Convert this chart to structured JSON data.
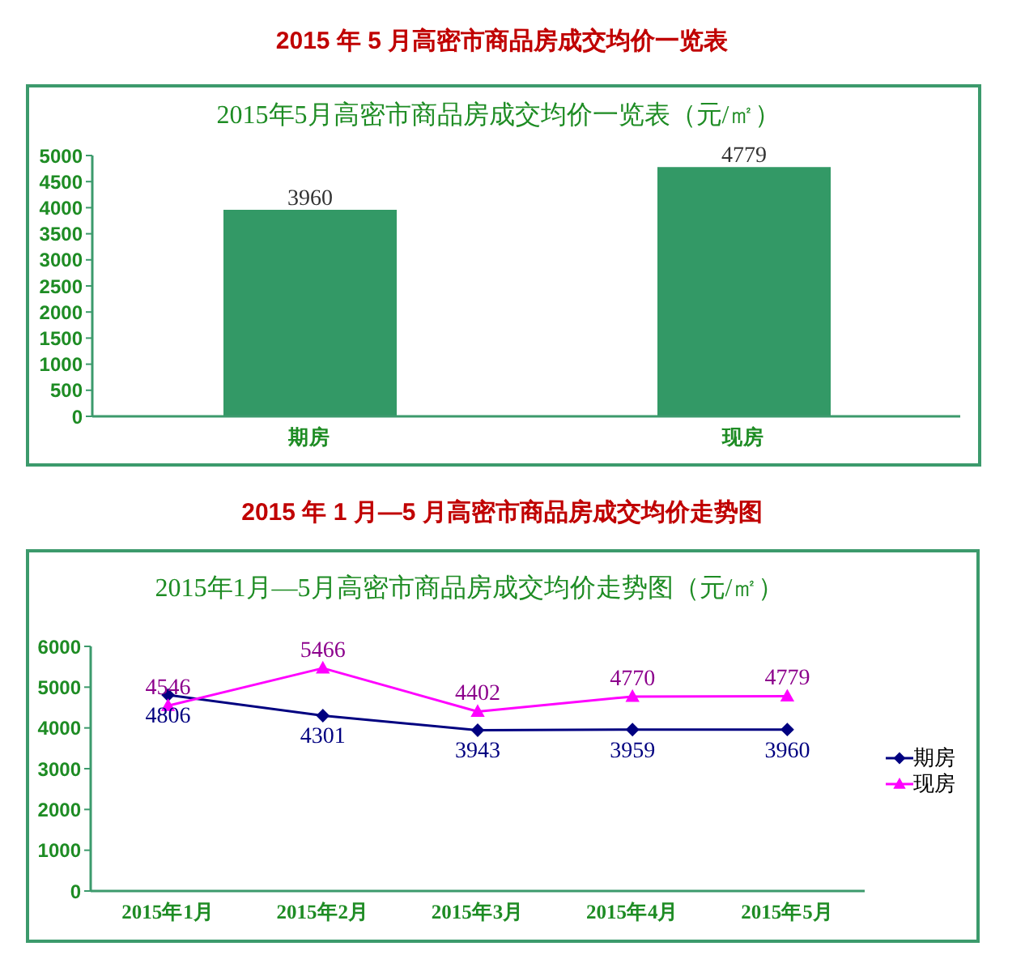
{
  "chart_data": [
    {
      "type": "bar",
      "title": "2015 年 5 月高密市商品房成交均价一览表",
      "subtitle": "2015年5月高密市商品房成交均价一览表（元/㎡）",
      "categories": [
        "期房",
        "现房"
      ],
      "values": [
        3960,
        4779
      ],
      "color": "#339966",
      "ylim": [
        0,
        5000
      ],
      "yticks": [
        0,
        500,
        1000,
        1500,
        2000,
        2500,
        3000,
        3500,
        4000,
        4500,
        5000
      ],
      "data_labels": true
    },
    {
      "type": "line",
      "title": "2015 年 1 月—5 月高密市商品房成交均价走势图",
      "subtitle": "2015年1月—5月高密市商品房成交均价走势图（元/㎡）",
      "categories": [
        "2015年1月",
        "2015年2月",
        "2015年3月",
        "2015年4月",
        "2015年5月"
      ],
      "series": [
        {
          "name": "期房",
          "color": "#000080",
          "values": [
            4806,
            4301,
            3943,
            3959,
            3960
          ],
          "marker": "diamond"
        },
        {
          "name": "现房",
          "color": "#ff00ff",
          "values": [
            4546,
            5466,
            4402,
            4770,
            4779
          ],
          "marker": "triangle"
        }
      ],
      "ylim": [
        0,
        6000
      ],
      "yticks": [
        0,
        1000,
        2000,
        3000,
        4000,
        5000,
        6000
      ],
      "legend": "right",
      "data_labels": true
    }
  ]
}
